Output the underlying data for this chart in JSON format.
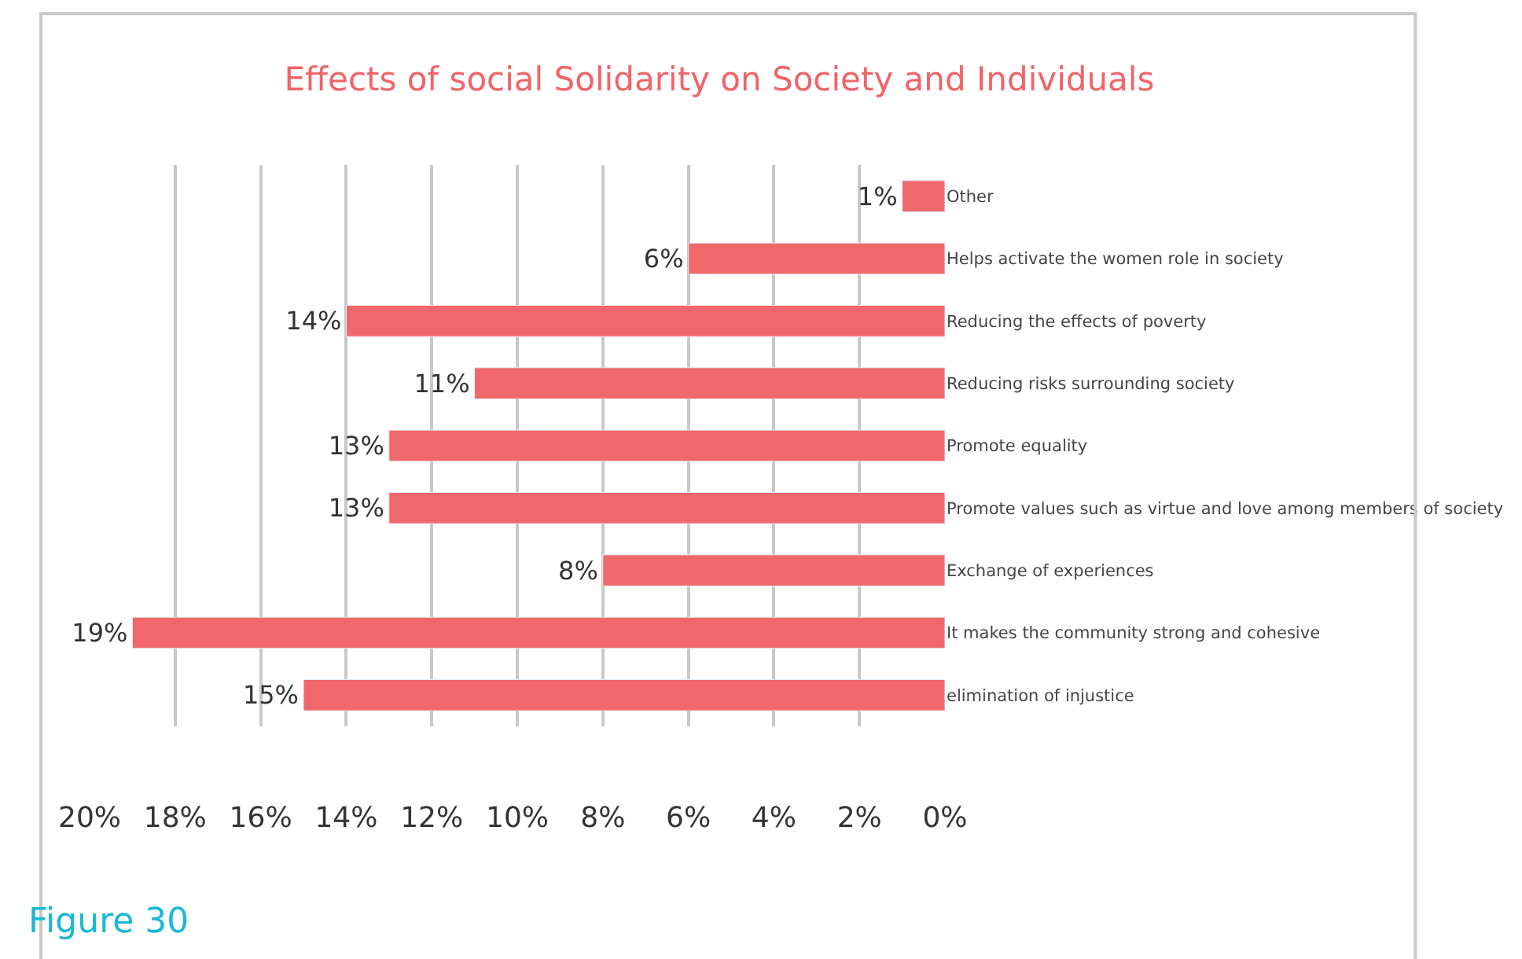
{
  "chart_data": {
    "type": "bar",
    "orientation": "horizontal",
    "title": "Effects of social Solidarity on Society and Individuals",
    "categories": [
      "Other",
      "Helps activate the women role in society",
      "Reducing the effects of poverty",
      "Reducing risks surrounding society",
      "Promote equality",
      "Promote values such as virtue and love among members of society",
      "Exchange of experiences",
      "It makes the community strong and cohesive",
      "elimination of injustice"
    ],
    "values": [
      1,
      6,
      14,
      11,
      13,
      13,
      8,
      19,
      15
    ],
    "value_labels": [
      "1%",
      "6%",
      "14%",
      "11%",
      "13%",
      "13%",
      "8%",
      "19%",
      "15%"
    ],
    "color": "#f0686b",
    "xlim": [
      20,
      0
    ],
    "xticks": [
      {
        "value": 20,
        "label": "20%"
      },
      {
        "value": 18,
        "label": "18%"
      },
      {
        "value": 16,
        "label": "16%"
      },
      {
        "value": 14,
        "label": "14%"
      },
      {
        "value": 12,
        "label": "12%"
      },
      {
        "value": 10,
        "label": "10%"
      },
      {
        "value": 8,
        "label": "8%"
      },
      {
        "value": 6,
        "label": "6%"
      },
      {
        "value": 4,
        "label": "4%"
      },
      {
        "value": 2,
        "label": "2%"
      },
      {
        "value": 0,
        "label": "0%"
      }
    ],
    "grid": "x",
    "legend": false,
    "annotations": [
      "Figure 30"
    ]
  }
}
